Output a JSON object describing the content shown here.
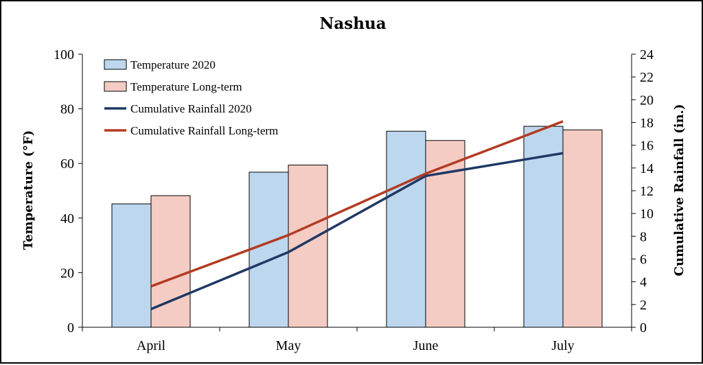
{
  "chart_data": {
    "type": "bar",
    "title": "Nashua",
    "categories": [
      "April",
      "May",
      "June",
      "July"
    ],
    "y_left": {
      "label": "Temperature (°F)",
      "lim": [
        0,
        100
      ],
      "ticks": [
        "0",
        "20",
        "40",
        "60",
        "80",
        "100"
      ]
    },
    "y_right": {
      "label": "Cumulative Rainfall (in.)",
      "lim": [
        0,
        24
      ],
      "ticks": [
        "0",
        "2",
        "4",
        "6",
        "8",
        "10",
        "12",
        "14",
        "16",
        "18",
        "20",
        "22",
        "24"
      ]
    },
    "bar_series": [
      {
        "name": "Temperature 2020",
        "axis": "left",
        "color": "#bdd7ee",
        "values": [
          45.2,
          56.8,
          71.8,
          73.6
        ]
      },
      {
        "name": "Temperature Long-term",
        "axis": "left",
        "color": "#f4ccc4",
        "values": [
          48.2,
          59.4,
          68.4,
          72.3
        ]
      }
    ],
    "line_series": [
      {
        "name": "Cumulative Rainfall 2020",
        "axis": "right",
        "color": "#1f3864",
        "values": [
          1.6,
          6.6,
          13.3,
          15.3
        ]
      },
      {
        "name": "Cumulative Rainfall Long-term",
        "axis": "right",
        "color": "#b33a22",
        "values": [
          3.6,
          8.1,
          13.5,
          18.1
        ]
      }
    ],
    "legend": "top-left",
    "grid": false
  }
}
